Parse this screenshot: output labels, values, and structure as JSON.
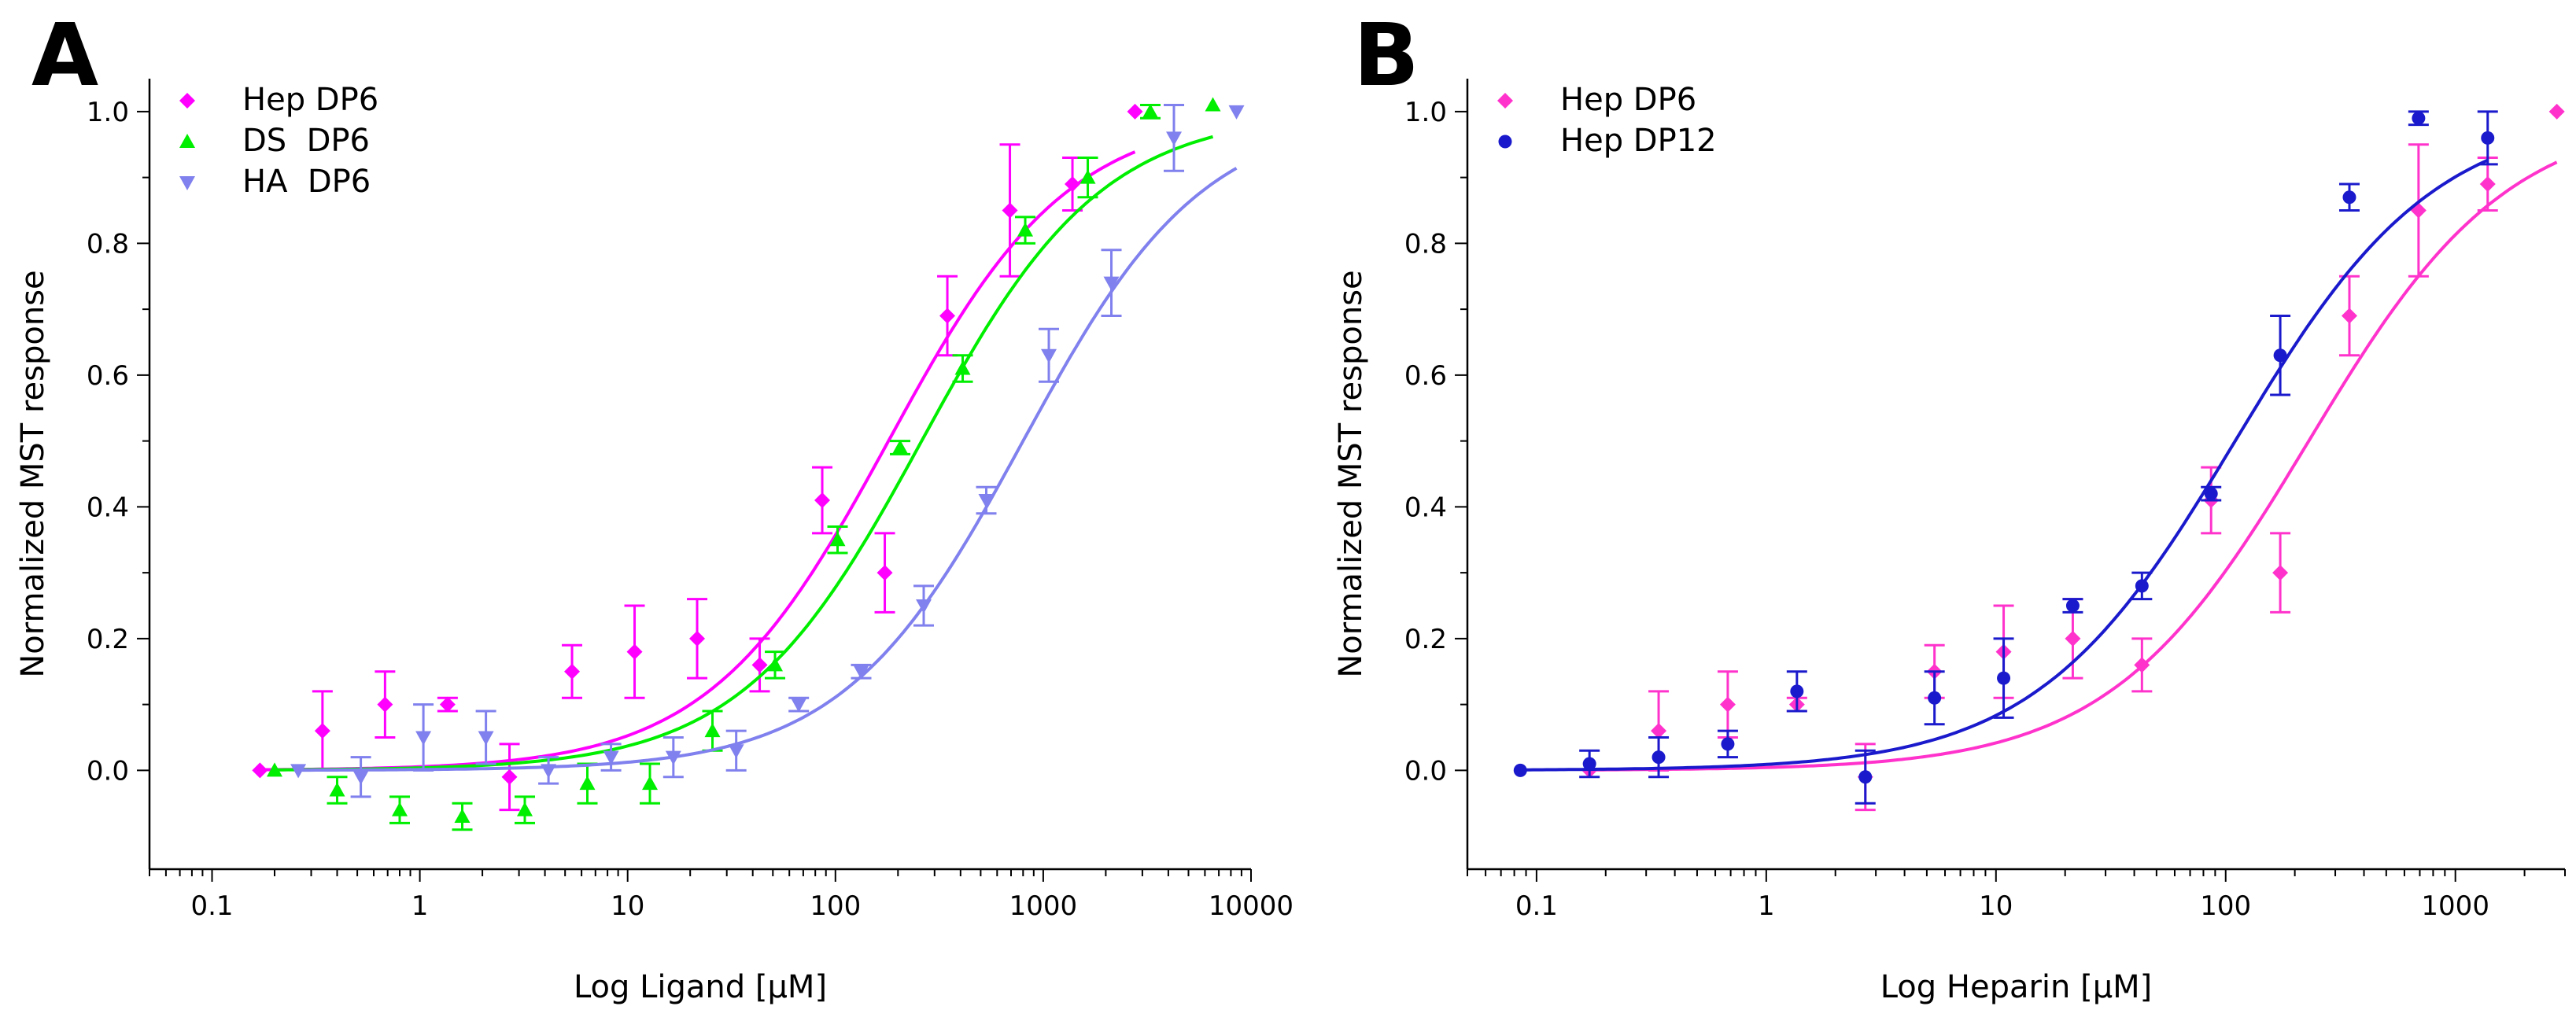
{
  "chart_data": [
    {
      "panel": "A",
      "type": "scatter",
      "title": "",
      "xlabel": "Log Ligand [µM]",
      "ylabel": "Normalized MST response",
      "xscale": "log",
      "xlim": [
        0.05,
        10000
      ],
      "ylim": [
        -0.15,
        1.05
      ],
      "xticks": [
        0.1,
        1,
        10,
        100,
        1000,
        10000
      ],
      "xtick_labels": [
        "0.1",
        "1",
        "10",
        "100",
        "1000",
        "10000"
      ],
      "yticks": [
        0.0,
        0.2,
        0.4,
        0.6,
        0.8,
        1.0
      ],
      "ytick_labels": [
        "0.0",
        "0.2",
        "0.4",
        "0.6",
        "0.8",
        "1.0"
      ],
      "grid": false,
      "legend_position": "top-left",
      "series": [
        {
          "name": "Hep DP6",
          "color": "#ff00ff",
          "marker": "diamond",
          "x": [
            0.17,
            0.34,
            0.68,
            1.36,
            2.7,
            5.4,
            10.8,
            21.6,
            43.2,
            86.4,
            172.8,
            345.6,
            691.2,
            1382.4,
            2764.8
          ],
          "y": [
            0.0,
            0.06,
            0.1,
            0.1,
            -0.01,
            0.15,
            0.18,
            0.2,
            0.16,
            0.41,
            0.3,
            0.69,
            0.85,
            0.89,
            1.0
          ],
          "err": [
            0.0,
            0.06,
            0.05,
            0.01,
            0.05,
            0.04,
            0.07,
            0.06,
            0.04,
            0.05,
            0.06,
            0.06,
            0.1,
            0.04,
            0.0
          ],
          "fit": {
            "ec50": 180,
            "hill": 1.0
          }
        },
        {
          "name": "DS  DP6",
          "color": "#00ee00",
          "marker": "triangle-up",
          "x": [
            0.2,
            0.4,
            0.8,
            1.6,
            3.2,
            6.4,
            12.8,
            25.6,
            51.2,
            102.4,
            204.8,
            409.6,
            819.2,
            1638.4,
            3276.8,
            6553.6
          ],
          "y": [
            0.0,
            -0.03,
            -0.06,
            -0.07,
            -0.06,
            -0.02,
            -0.02,
            0.06,
            0.16,
            0.35,
            0.49,
            0.61,
            0.82,
            0.9,
            1.0,
            1.01
          ],
          "err": [
            0.0,
            0.02,
            0.02,
            0.02,
            0.02,
            0.03,
            0.03,
            0.03,
            0.02,
            0.02,
            0.01,
            0.02,
            0.02,
            0.03,
            0.01,
            0.0
          ],
          "fit": {
            "ec50": 260,
            "hill": 1.0
          }
        },
        {
          "name": "HA  DP6",
          "color": "#8080ee",
          "marker": "triangle-down",
          "x": [
            0.26,
            0.52,
            1.04,
            2.08,
            4.16,
            8.32,
            16.6,
            33.3,
            66.6,
            133,
            266,
            532,
            1064,
            2128,
            4256,
            8512
          ],
          "y": [
            0.0,
            -0.01,
            0.05,
            0.05,
            0.0,
            0.02,
            0.02,
            0.03,
            0.1,
            0.15,
            0.25,
            0.41,
            0.63,
            0.74,
            0.96,
            1.0
          ],
          "err": [
            0.0,
            0.03,
            0.05,
            0.04,
            0.02,
            0.02,
            0.03,
            0.03,
            0.01,
            0.01,
            0.03,
            0.02,
            0.04,
            0.05,
            0.05,
            0.0
          ],
          "fit": {
            "ec50": 800,
            "hill": 1.0
          }
        }
      ]
    },
    {
      "panel": "B",
      "type": "scatter",
      "title": "",
      "xlabel": "Log Heparin [µM]",
      "ylabel": "Normalized MST response",
      "xscale": "log",
      "xlim": [
        0.05,
        3000
      ],
      "ylim": [
        -0.15,
        1.05
      ],
      "xticks": [
        0.1,
        1,
        10,
        100,
        1000
      ],
      "xtick_labels": [
        "0.1",
        "1",
        "10",
        "100",
        "1000"
      ],
      "yticks": [
        0.0,
        0.2,
        0.4,
        0.6,
        0.8,
        1.0
      ],
      "ytick_labels": [
        "0.0",
        "0.2",
        "0.4",
        "0.6",
        "0.8",
        "1.0"
      ],
      "grid": false,
      "legend_position": "top-left",
      "series": [
        {
          "name": "Hep DP6",
          "color": "#ff33cc",
          "marker": "diamond",
          "x": [
            0.17,
            0.34,
            0.68,
            1.36,
            2.7,
            5.4,
            10.8,
            21.6,
            43.2,
            86.4,
            172.8,
            345.6,
            691.2,
            1382.4,
            2764.8
          ],
          "y": [
            0.0,
            0.06,
            0.1,
            0.1,
            -0.01,
            0.15,
            0.18,
            0.2,
            0.16,
            0.41,
            0.3,
            0.69,
            0.85,
            0.89,
            1.0
          ],
          "err": [
            0.0,
            0.06,
            0.05,
            0.01,
            0.05,
            0.04,
            0.07,
            0.06,
            0.04,
            0.05,
            0.06,
            0.06,
            0.1,
            0.04,
            0.0
          ],
          "fit": {
            "ec50": 230,
            "hill": 1.0
          }
        },
        {
          "name": "Hep DP12",
          "color": "#1a1acc",
          "marker": "circle",
          "x": [
            0.085,
            0.17,
            0.34,
            0.68,
            1.36,
            2.7,
            5.4,
            10.8,
            21.6,
            43.2,
            86.4,
            172.8,
            345.6,
            691.2,
            1382.4
          ],
          "y": [
            0.0,
            0.01,
            0.02,
            0.04,
            0.12,
            -0.01,
            0.11,
            0.14,
            0.25,
            0.28,
            0.42,
            0.63,
            0.87,
            0.99,
            0.96
          ],
          "err": [
            0.0,
            0.02,
            0.03,
            0.02,
            0.03,
            0.04,
            0.04,
            0.06,
            0.01,
            0.02,
            0.01,
            0.06,
            0.02,
            0.01,
            0.04
          ],
          "fit": {
            "ec50": 110,
            "hill": 1.0
          }
        }
      ]
    }
  ]
}
